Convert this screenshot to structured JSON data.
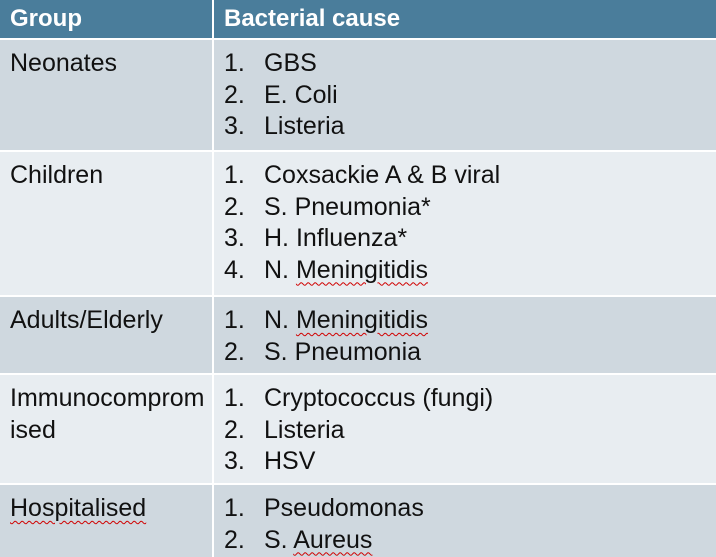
{
  "headers": {
    "group": "Group",
    "cause": "Bacterial cause"
  },
  "rows": [
    {
      "group": "Neonates",
      "causes": [
        {
          "num": "1.",
          "text": "GBS"
        },
        {
          "num": "2.",
          "text": "E. Coli"
        },
        {
          "num": "3.",
          "text": "Listeria"
        }
      ]
    },
    {
      "group": "Children",
      "causes": [
        {
          "num": "1.",
          "text": "Coxsackie A & B viral"
        },
        {
          "num": "2.",
          "text": "S. Pneumonia*"
        },
        {
          "num": "3.",
          "text": "H. Influenza*"
        },
        {
          "num": "4.",
          "pre": "N. ",
          "flagged": "Meningitidis"
        }
      ]
    },
    {
      "group": "Adults/Elderly",
      "causes": [
        {
          "num": "1.",
          "pre": "N. ",
          "flagged": "Meningitidis"
        },
        {
          "num": "2.",
          "text": "S. Pneumonia"
        }
      ]
    },
    {
      "group": "Immunocompromised",
      "causes": [
        {
          "num": "1.",
          "text": "Cryptococcus (fungi)"
        },
        {
          "num": "2.",
          "text": "Listeria"
        },
        {
          "num": "3.",
          "text": "HSV"
        }
      ]
    },
    {
      "group_flagged": "Hospitalised",
      "causes": [
        {
          "num": "1.",
          "text": "Pseudomonas"
        },
        {
          "num": "2.",
          "pre": "S. ",
          "flagged": "Aureus"
        }
      ]
    }
  ],
  "colors": {
    "header_bg": "#4a7d9b",
    "row_dark": "#cfd8df",
    "row_light": "#e8edf1",
    "spellcheck_underline": "#d00000"
  }
}
